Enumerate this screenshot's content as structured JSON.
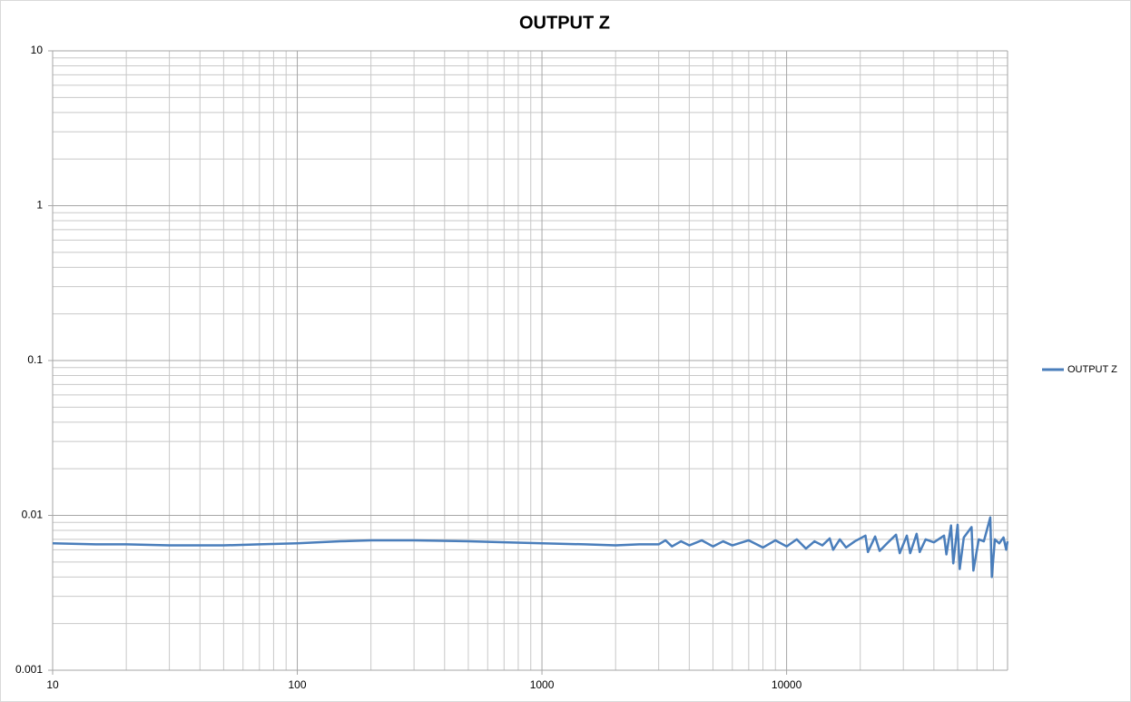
{
  "chart_data": {
    "type": "line",
    "title": "OUTPUT Z",
    "x": [
      10,
      15,
      20,
      30,
      40,
      50,
      70,
      100,
      150,
      200,
      300,
      500,
      700,
      1000,
      1500,
      2000,
      2500,
      3000,
      3200,
      3400,
      3700,
      4000,
      4500,
      5000,
      5500,
      6000,
      7000,
      8000,
      9000,
      10000,
      11000,
      12000,
      13000,
      14000,
      15000,
      15500,
      16500,
      17500,
      19000,
      21000,
      21500,
      23000,
      24000,
      26000,
      28000,
      29000,
      31000,
      32000,
      34000,
      35000,
      37000,
      40000,
      44000,
      45000,
      47000,
      48000,
      50000,
      51000,
      53000,
      57000,
      58000,
      61000,
      64000,
      68000,
      69000,
      71000,
      74000,
      77000,
      79000,
      80000
    ],
    "series": [
      {
        "name": "OUTPUT Z",
        "color": "#4a7ebb",
        "values": [
          0.0066,
          0.0065,
          0.0065,
          0.0064,
          0.0064,
          0.0064,
          0.0065,
          0.0066,
          0.0068,
          0.0069,
          0.0069,
          0.0068,
          0.0067,
          0.0066,
          0.0065,
          0.0064,
          0.0065,
          0.0065,
          0.0069,
          0.0063,
          0.0068,
          0.0064,
          0.0069,
          0.0063,
          0.0068,
          0.0064,
          0.0069,
          0.0062,
          0.0069,
          0.0063,
          0.007,
          0.0061,
          0.0068,
          0.0064,
          0.0071,
          0.006,
          0.007,
          0.0062,
          0.0068,
          0.0074,
          0.0058,
          0.0073,
          0.0059,
          0.0067,
          0.0075,
          0.0057,
          0.0074,
          0.0057,
          0.0076,
          0.0058,
          0.007,
          0.0067,
          0.0074,
          0.0056,
          0.0086,
          0.0049,
          0.0087,
          0.0045,
          0.0072,
          0.0084,
          0.0044,
          0.007,
          0.0068,
          0.0097,
          0.004,
          0.007,
          0.0066,
          0.0072,
          0.006,
          0.0068
        ]
      }
    ],
    "xlim": [
      10,
      80000
    ],
    "ylim": [
      0.001,
      10
    ],
    "xticks": [
      10,
      100,
      1000,
      10000
    ],
    "yticks": [
      0.001,
      0.01,
      0.1,
      1,
      10
    ],
    "xscale": "log",
    "yscale": "log",
    "grid": true,
    "minor_grid": true,
    "legend": "right"
  }
}
